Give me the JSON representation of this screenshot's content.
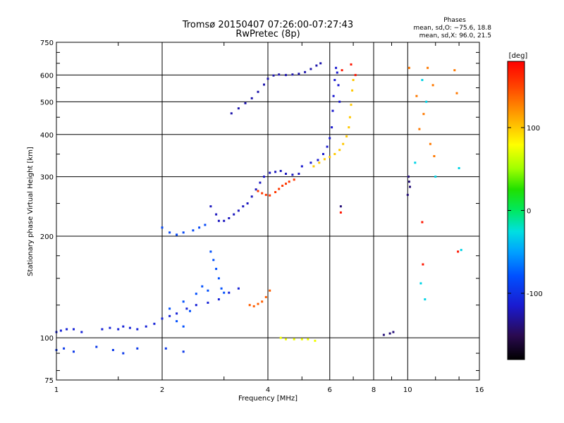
{
  "chart_data": {
    "type": "scatter",
    "title": "Tromsø 20150407 07:26:00-07:27:43",
    "subtitle": "RwPretec (8p)",
    "xlabel": "Frequency [MHz]",
    "ylabel": "Stationary phase Virtual Height [km]",
    "x_scale": "log",
    "y_scale": "log",
    "xlim": [
      1,
      16
    ],
    "ylim": [
      75,
      750
    ],
    "x_ticks": [
      1,
      2,
      4,
      6,
      8,
      10,
      16
    ],
    "x_tick_labels": [
      "1",
      "2",
      "4",
      "6",
      "8",
      "10",
      "16"
    ],
    "y_ticks": [
      75,
      100,
      200,
      300,
      400,
      500,
      600,
      750
    ],
    "y_tick_labels": [
      "75",
      "100",
      "200",
      "300",
      "400",
      "500",
      "600",
      "750"
    ],
    "grid": true,
    "stats": {
      "heading": "Phases",
      "line1": "mean, sd,O: −75.6, 18.8",
      "line2": "mean, sd,X:  96.0, 21.5"
    },
    "colorbar": {
      "label": "[deg]",
      "range": [
        -180,
        180
      ],
      "ticks": [
        100,
        0,
        -100
      ],
      "tick_labels": [
        "100",
        "0",
        "-100"
      ]
    },
    "series": [
      {
        "phase": -110,
        "points": [
          [
            1.0,
            104
          ],
          [
            1.03,
            105
          ],
          [
            1.07,
            106
          ],
          [
            1.12,
            106
          ],
          [
            1.18,
            104
          ],
          [
            1.35,
            106
          ],
          [
            1.42,
            107
          ],
          [
            1.5,
            106
          ],
          [
            1.55,
            108
          ],
          [
            1.62,
            107
          ],
          [
            1.7,
            106
          ],
          [
            1.8,
            108
          ],
          [
            1.9,
            110
          ],
          [
            2.0,
            114
          ],
          [
            2.1,
            116
          ],
          [
            2.2,
            118
          ],
          [
            2.35,
            122
          ],
          [
            2.5,
            125
          ],
          [
            2.7,
            127
          ],
          [
            2.9,
            130
          ],
          [
            3.1,
            136
          ],
          [
            3.3,
            140
          ]
        ]
      },
      {
        "phase": -95,
        "points": [
          [
            1.0,
            92
          ],
          [
            1.05,
            93
          ],
          [
            1.12,
            91
          ],
          [
            1.3,
            94
          ],
          [
            1.45,
            92
          ],
          [
            1.55,
            90
          ],
          [
            1.7,
            93
          ],
          [
            2.05,
            93
          ],
          [
            2.3,
            91
          ]
        ]
      },
      {
        "phase": -85,
        "points": [
          [
            2.0,
            212
          ],
          [
            2.1,
            205
          ],
          [
            2.2,
            202
          ],
          [
            2.3,
            205
          ],
          [
            2.45,
            208
          ],
          [
            2.55,
            212
          ],
          [
            2.65,
            216
          ]
        ]
      },
      {
        "phase": -120,
        "points": [
          [
            2.75,
            245
          ],
          [
            2.85,
            232
          ],
          [
            2.9,
            222
          ],
          [
            3.0,
            222
          ],
          [
            3.1,
            226
          ],
          [
            3.2,
            232
          ],
          [
            3.3,
            238
          ],
          [
            3.4,
            245
          ],
          [
            3.5,
            250
          ],
          [
            3.6,
            262
          ],
          [
            3.7,
            275
          ],
          [
            3.8,
            288
          ],
          [
            3.9,
            300
          ],
          [
            4.05,
            308
          ],
          [
            4.2,
            310
          ],
          [
            4.35,
            312
          ],
          [
            4.5,
            306
          ],
          [
            4.7,
            304
          ],
          [
            4.9,
            306
          ]
        ]
      },
      {
        "phase": -125,
        "points": [
          [
            3.15,
            462
          ],
          [
            3.3,
            478
          ],
          [
            3.45,
            495
          ],
          [
            3.6,
            512
          ],
          [
            3.75,
            535
          ],
          [
            3.9,
            562
          ],
          [
            4.0,
            585
          ],
          [
            4.15,
            598
          ],
          [
            4.3,
            602
          ],
          [
            4.5,
            600
          ],
          [
            4.7,
            602
          ],
          [
            4.9,
            605
          ],
          [
            5.1,
            612
          ],
          [
            5.3,
            625
          ],
          [
            5.5,
            640
          ],
          [
            5.65,
            650
          ]
        ]
      },
      {
        "phase": -115,
        "points": [
          [
            5.0,
            322
          ],
          [
            5.3,
            330
          ],
          [
            5.55,
            336
          ],
          [
            5.75,
            350
          ],
          [
            5.9,
            368
          ],
          [
            6.0,
            390
          ],
          [
            6.08,
            420
          ],
          [
            6.12,
            470
          ],
          [
            6.15,
            520
          ],
          [
            6.2,
            580
          ],
          [
            6.25,
            630
          ],
          [
            6.3,
            610
          ],
          [
            6.35,
            560
          ],
          [
            6.4,
            500
          ]
        ]
      },
      {
        "phase": -80,
        "points": [
          [
            2.75,
            180
          ],
          [
            2.8,
            170
          ],
          [
            2.85,
            160
          ],
          [
            2.9,
            150
          ],
          [
            2.95,
            140
          ],
          [
            3.0,
            136
          ],
          [
            2.7,
            138
          ],
          [
            2.6,
            142
          ],
          [
            2.5,
            135
          ],
          [
            2.3,
            128
          ],
          [
            2.4,
            120
          ],
          [
            2.2,
            112
          ],
          [
            2.1,
            122
          ],
          [
            2.3,
            108
          ]
        ]
      },
      {
        "phase": 155,
        "points": [
          [
            3.75,
            272
          ],
          [
            3.85,
            268
          ],
          [
            3.95,
            265
          ],
          [
            4.05,
            264
          ],
          [
            4.2,
            270
          ],
          [
            4.3,
            276
          ],
          [
            4.4,
            282
          ],
          [
            4.5,
            286
          ],
          [
            4.6,
            290
          ],
          [
            4.75,
            294
          ]
        ]
      },
      {
        "phase": 140,
        "points": [
          [
            3.55,
            125
          ],
          [
            3.65,
            124
          ],
          [
            3.75,
            126
          ],
          [
            3.85,
            128
          ],
          [
            3.95,
            132
          ],
          [
            4.05,
            138
          ]
        ]
      },
      {
        "phase": 100,
        "points": [
          [
            5.4,
            322
          ],
          [
            5.6,
            330
          ],
          [
            5.8,
            338
          ],
          [
            6.0,
            343
          ],
          [
            6.2,
            350
          ],
          [
            6.4,
            360
          ],
          [
            6.55,
            375
          ],
          [
            6.7,
            395
          ],
          [
            6.8,
            420
          ],
          [
            6.85,
            450
          ],
          [
            6.9,
            490
          ],
          [
            6.95,
            540
          ],
          [
            7.0,
            580
          ]
        ]
      },
      {
        "phase": 75,
        "points": [
          [
            4.35,
            100
          ],
          [
            4.5,
            99
          ],
          [
            4.75,
            99
          ],
          [
            5.0,
            99
          ],
          [
            5.2,
            99
          ],
          [
            5.45,
            98
          ]
        ]
      },
      {
        "phase": -140,
        "points": [
          [
            8.55,
            102
          ],
          [
            8.9,
            103
          ],
          [
            9.1,
            104
          ],
          [
            6.45,
            245
          ],
          [
            10.05,
            300
          ],
          [
            10.1,
            290
          ],
          [
            10.15,
            280
          ],
          [
            10.0,
            265
          ]
        ]
      },
      {
        "phase": 130,
        "points": [
          [
            10.1,
            630
          ],
          [
            11.4,
            630
          ],
          [
            11.8,
            560
          ],
          [
            13.6,
            620
          ],
          [
            13.8,
            530
          ],
          [
            11.1,
            460
          ],
          [
            11.6,
            375
          ],
          [
            11.9,
            345
          ],
          [
            10.6,
            520
          ],
          [
            10.8,
            415
          ]
        ]
      },
      {
        "phase": -30,
        "points": [
          [
            11.0,
            580
          ],
          [
            11.3,
            500
          ],
          [
            10.5,
            330
          ],
          [
            14.0,
            318
          ],
          [
            12.0,
            300
          ],
          [
            10.9,
            145
          ],
          [
            11.2,
            130
          ],
          [
            14.2,
            182
          ]
        ]
      },
      {
        "phase": 170,
        "points": [
          [
            6.5,
            620
          ],
          [
            6.9,
            645
          ],
          [
            7.1,
            600
          ],
          [
            6.45,
            235
          ],
          [
            11.0,
            220
          ],
          [
            11.05,
            165
          ],
          [
            13.9,
            180
          ]
        ]
      }
    ]
  }
}
